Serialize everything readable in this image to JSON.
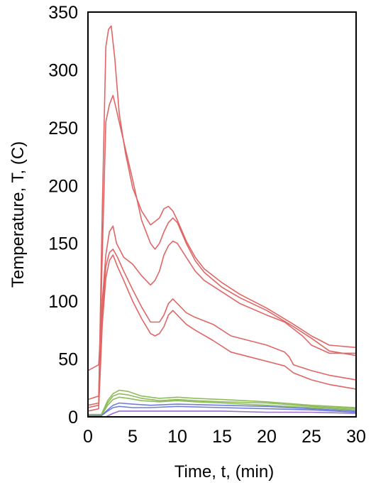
{
  "chart_data": {
    "type": "line",
    "xlabel": "Time, t, (min)",
    "ylabel": "Temperature, T, (C)",
    "xlim": [
      0,
      30
    ],
    "ylim": [
      0,
      350
    ],
    "xticks": [
      0,
      5,
      10,
      15,
      20,
      25,
      30
    ],
    "yticks": [
      0,
      50,
      100,
      150,
      200,
      250,
      300,
      350
    ],
    "grid": false,
    "legend": "none",
    "colors": {
      "red": "#e06666",
      "green": "#8fbc5a",
      "blue": "#6f7fd9",
      "purple": "#9a6fc8",
      "axis": "#000000"
    },
    "series": [
      {
        "color": "red",
        "x": [
          0,
          1.2,
          1.6,
          2.0,
          2.3,
          2.6,
          3.0,
          3.5,
          4.2,
          5,
          6,
          7,
          8,
          8.5,
          9,
          9.5,
          10,
          11,
          12,
          13,
          15,
          17,
          20,
          23,
          25,
          27,
          30
        ],
        "y": [
          10,
          12,
          180,
          320,
          335,
          338,
          310,
          262,
          228,
          198,
          178,
          166,
          172,
          180,
          182,
          178,
          170,
          152,
          138,
          128,
          116,
          106,
          94,
          80,
          70,
          62,
          60
        ]
      },
      {
        "color": "red",
        "x": [
          0,
          1.2,
          1.6,
          2.0,
          2.4,
          2.8,
          3.2,
          4,
          5,
          6,
          7,
          7.5,
          8,
          8.5,
          9,
          9.5,
          10,
          11,
          12,
          13,
          15,
          17,
          20,
          23,
          25,
          27,
          30
        ],
        "y": [
          15,
          18,
          140,
          255,
          270,
          278,
          265,
          238,
          205,
          170,
          150,
          145,
          150,
          160,
          168,
          172,
          168,
          150,
          135,
          125,
          112,
          103,
          92,
          78,
          68,
          57,
          53
        ]
      },
      {
        "color": "red",
        "x": [
          0,
          1.2,
          1.6,
          2.0,
          2.4,
          2.8,
          3.2,
          4,
          5,
          6,
          6.5,
          7,
          7.5,
          8,
          8.5,
          9,
          9.5,
          10,
          11,
          12,
          13,
          15,
          17,
          20,
          22,
          24,
          25,
          27,
          30
        ],
        "y": [
          40,
          45,
          100,
          140,
          160,
          165,
          150,
          138,
          132,
          122,
          118,
          114,
          118,
          126,
          140,
          148,
          152,
          150,
          138,
          126,
          118,
          108,
          98,
          88,
          82,
          70,
          62,
          55,
          55
        ]
      },
      {
        "color": "red",
        "x": [
          0,
          1.2,
          1.6,
          2.0,
          2.4,
          2.8,
          3.3,
          4,
          5,
          6,
          7,
          8,
          8.5,
          9,
          9.5,
          10,
          11,
          12,
          14,
          16,
          18,
          20,
          22,
          22.5,
          23,
          25,
          27,
          30
        ],
        "y": [
          8,
          10,
          90,
          130,
          142,
          145,
          138,
          126,
          110,
          95,
          82,
          82,
          88,
          98,
          102,
          98,
          90,
          86,
          80,
          70,
          66,
          62,
          56,
          52,
          45,
          40,
          36,
          32
        ]
      },
      {
        "color": "red",
        "x": [
          0,
          1.2,
          1.6,
          2.0,
          2.4,
          2.8,
          3.3,
          4,
          5,
          6,
          7,
          7.5,
          8,
          8.5,
          9,
          9.5,
          10,
          11,
          12,
          14,
          16,
          18,
          20,
          22,
          23,
          25,
          27,
          30
        ],
        "y": [
          5,
          7,
          80,
          120,
          135,
          140,
          130,
          118,
          100,
          85,
          72,
          70,
          72,
          78,
          88,
          92,
          88,
          80,
          75,
          66,
          56,
          52,
          48,
          44,
          38,
          32,
          28,
          24
        ]
      },
      {
        "color": "green",
        "x": [
          0,
          1.5,
          2.2,
          2.8,
          3.5,
          4.5,
          6,
          8,
          10,
          12,
          15,
          20,
          25,
          30
        ],
        "y": [
          2,
          2,
          14,
          20,
          23,
          22,
          18,
          16,
          17,
          16,
          15,
          13,
          10,
          8
        ]
      },
      {
        "color": "green",
        "x": [
          0,
          1.5,
          2.2,
          2.8,
          3.5,
          4.5,
          6,
          8,
          10,
          12,
          15,
          20,
          25,
          30
        ],
        "y": [
          2,
          2,
          12,
          18,
          20,
          19,
          16,
          14,
          15,
          14,
          13,
          12,
          9,
          7
        ]
      },
      {
        "color": "green",
        "x": [
          0,
          1.5,
          2.2,
          2.8,
          3.5,
          4.5,
          6,
          8,
          10,
          12,
          15,
          20,
          25,
          30
        ],
        "y": [
          1,
          1,
          10,
          15,
          17,
          16,
          14,
          13,
          14,
          13,
          12,
          10,
          8,
          6
        ]
      },
      {
        "color": "blue",
        "x": [
          0,
          1.5,
          2.2,
          2.8,
          3.5,
          5,
          7,
          10,
          15,
          20,
          25,
          30
        ],
        "y": [
          1,
          1,
          6,
          10,
          12,
          11,
          10,
          11,
          10,
          9,
          7,
          5
        ]
      },
      {
        "color": "blue",
        "x": [
          0,
          1.5,
          2.2,
          2.8,
          3.5,
          5,
          7,
          10,
          15,
          20,
          25,
          30
        ],
        "y": [
          1,
          1,
          5,
          8,
          9,
          8,
          8,
          9,
          8,
          7,
          6,
          4
        ]
      },
      {
        "color": "purple",
        "x": [
          0,
          2.0,
          2.8,
          3.5,
          5,
          10,
          15,
          20,
          25,
          30
        ],
        "y": [
          0,
          0,
          3,
          5,
          5,
          5,
          5,
          4,
          4,
          3
        ]
      }
    ]
  }
}
